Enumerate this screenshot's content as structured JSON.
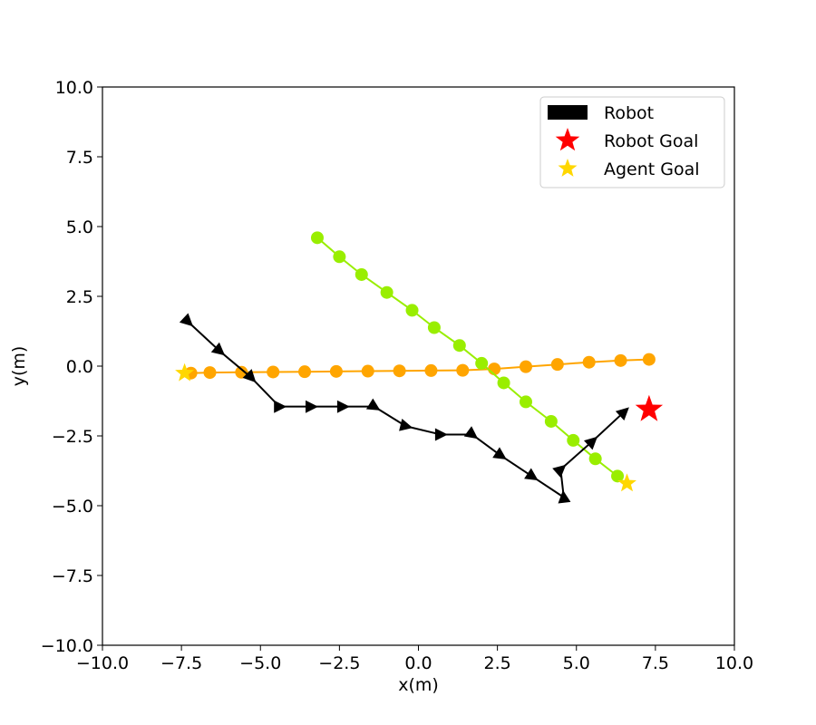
{
  "chart_data": {
    "type": "scatter",
    "title": "",
    "xlabel": "x(m)",
    "ylabel": "y(m)",
    "xlim": [
      -10,
      10
    ],
    "ylim": [
      -10,
      10
    ],
    "xticks": [
      -10,
      -7.5,
      -5,
      -2.5,
      0,
      2.5,
      5,
      7.5,
      10
    ],
    "yticks": [
      -10,
      -7.5,
      -5,
      -2.5,
      0,
      2.5,
      5,
      7.5,
      10
    ],
    "xtick_labels": [
      "−10.0",
      "−7.5",
      "−5.0",
      "−2.5",
      "0.0",
      "2.5",
      "5.0",
      "7.5",
      "10.0"
    ],
    "ytick_labels": [
      "−10.0",
      "−7.5",
      "−5.0",
      "−2.5",
      "0.0",
      "2.5",
      "5.0",
      "7.5",
      "10.0"
    ],
    "grid": false,
    "legend_position": "top-right",
    "legend": [
      {
        "label": "Robot",
        "marker": "arrow",
        "color": "#000000"
      },
      {
        "label": "Robot Goal",
        "marker": "star",
        "color": "#ff0000"
      },
      {
        "label": "Agent Goal",
        "marker": "star",
        "color": "#ffd700"
      }
    ],
    "robot": {
      "color": "#000000",
      "path": [
        {
          "x": -7.3,
          "y": 1.6,
          "heading": 0
        },
        {
          "x": -6.3,
          "y": 0.55,
          "heading": 90
        },
        {
          "x": -5.3,
          "y": -0.4,
          "heading": 90
        },
        {
          "x": -4.4,
          "y": -1.45,
          "heading": 90
        },
        {
          "x": -3.4,
          "y": -1.45,
          "heading": 0
        },
        {
          "x": -2.4,
          "y": -1.45,
          "heading": 0
        },
        {
          "x": -1.4,
          "y": -1.45,
          "heading": 0
        },
        {
          "x": -0.4,
          "y": -2.15,
          "heading": 45
        },
        {
          "x": 0.7,
          "y": -2.45,
          "heading": 0
        },
        {
          "x": 1.7,
          "y": -2.45,
          "heading": 0
        },
        {
          "x": 2.6,
          "y": -3.2,
          "heading": 45
        },
        {
          "x": 3.6,
          "y": -3.95,
          "heading": 45
        },
        {
          "x": 4.6,
          "y": -4.7,
          "heading": -60
        },
        {
          "x": 4.5,
          "y": -3.7,
          "heading": 45
        },
        {
          "x": 5.5,
          "y": -2.7,
          "heading": 45
        },
        {
          "x": 6.5,
          "y": -1.65,
          "heading": 45
        }
      ]
    },
    "robot_goal": {
      "x": 7.3,
      "y": -1.55,
      "color": "#ff0000"
    },
    "agents": [
      {
        "color": "#ffa500",
        "goal": {
          "x": -7.4,
          "y": -0.25
        },
        "points": [
          {
            "x": -7.2,
            "y": -0.25
          },
          {
            "x": -6.6,
            "y": -0.23
          },
          {
            "x": -5.6,
            "y": -0.22
          },
          {
            "x": -4.6,
            "y": -0.21
          },
          {
            "x": -3.6,
            "y": -0.2
          },
          {
            "x": -2.6,
            "y": -0.19
          },
          {
            "x": -1.6,
            "y": -0.18
          },
          {
            "x": -0.6,
            "y": -0.17
          },
          {
            "x": 0.4,
            "y": -0.16
          },
          {
            "x": 1.4,
            "y": -0.15
          },
          {
            "x": 2.4,
            "y": -0.1
          },
          {
            "x": 3.4,
            "y": -0.02
          },
          {
            "x": 4.4,
            "y": 0.06
          },
          {
            "x": 5.4,
            "y": 0.14
          },
          {
            "x": 6.4,
            "y": 0.2
          },
          {
            "x": 7.3,
            "y": 0.24
          }
        ]
      },
      {
        "color": "#99ee00",
        "goal": {
          "x": 6.6,
          "y": -4.2
        },
        "points": [
          {
            "x": -3.2,
            "y": 4.6
          },
          {
            "x": -2.5,
            "y": 3.92
          },
          {
            "x": -1.8,
            "y": 3.28
          },
          {
            "x": -1.0,
            "y": 2.64
          },
          {
            "x": -0.2,
            "y": 2.0
          },
          {
            "x": 0.5,
            "y": 1.38
          },
          {
            "x": 1.3,
            "y": 0.74
          },
          {
            "x": 2.0,
            "y": 0.1
          },
          {
            "x": 2.7,
            "y": -0.6
          },
          {
            "x": 3.4,
            "y": -1.28
          },
          {
            "x": 4.2,
            "y": -1.98
          },
          {
            "x": 4.9,
            "y": -2.66
          },
          {
            "x": 5.6,
            "y": -3.32
          },
          {
            "x": 6.3,
            "y": -3.94
          }
        ]
      }
    ]
  }
}
